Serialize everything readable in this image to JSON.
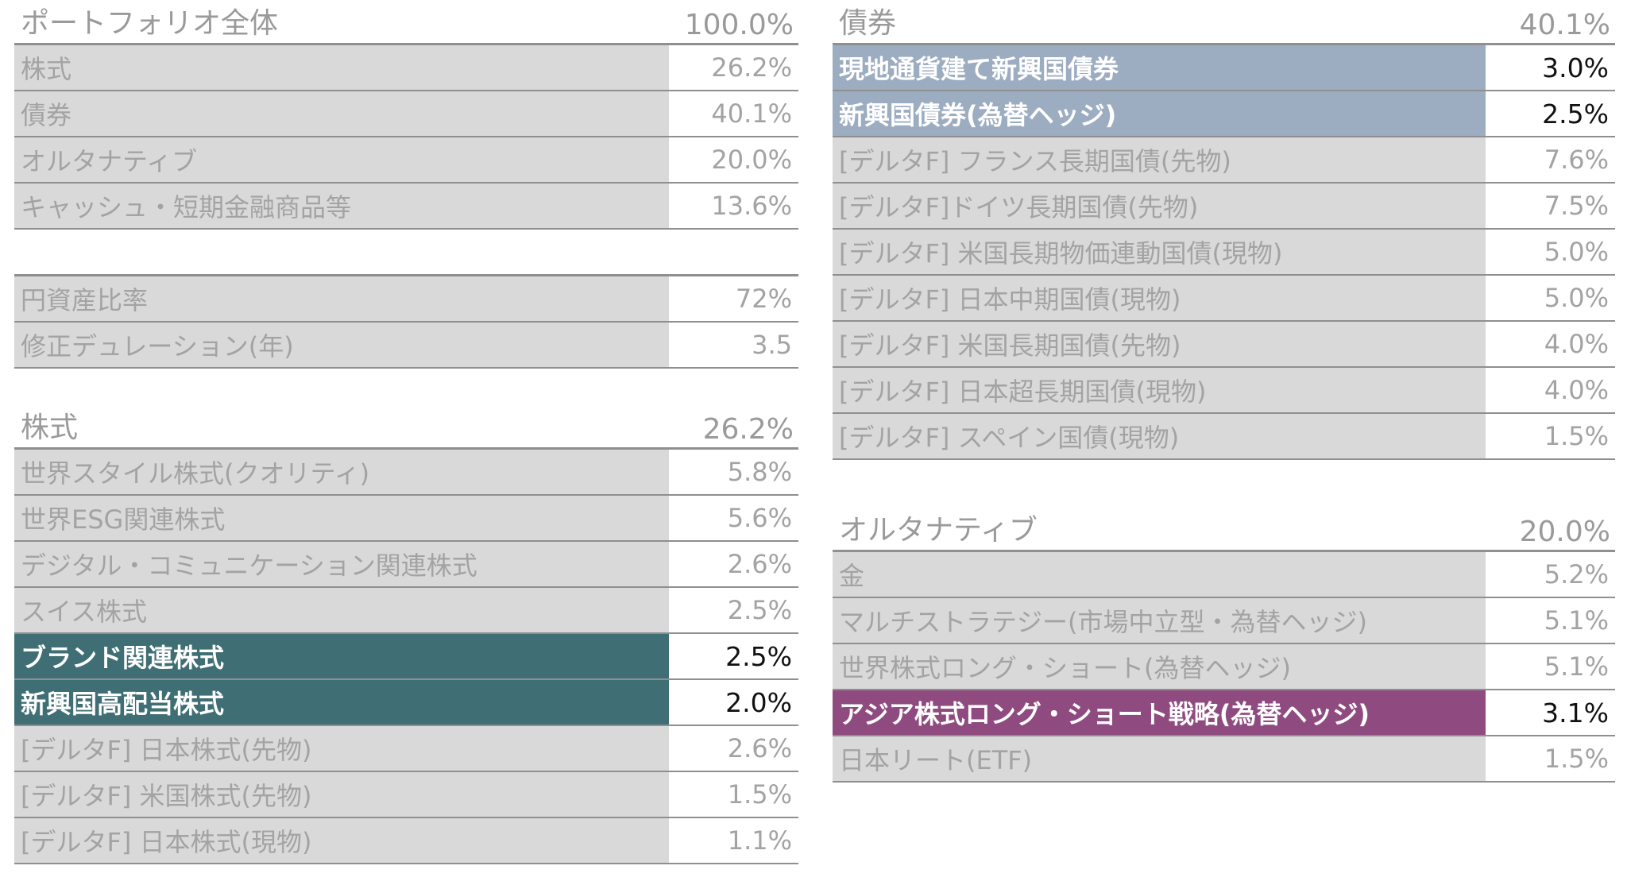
{
  "portfolio": {
    "title": "ポートフォリオ全体",
    "total": "100.0%",
    "rows": [
      {
        "label": "株式",
        "value": "26.2%"
      },
      {
        "label": "債券",
        "value": "40.1%"
      },
      {
        "label": "オルタナティブ",
        "value": "20.0%"
      },
      {
        "label": "キャッシュ・短期金融商品等",
        "value": "13.6%"
      }
    ]
  },
  "metrics": {
    "rows": [
      {
        "label": "円資産比率",
        "value": "72%"
      },
      {
        "label": "修正デュレーション(年)",
        "value": "3.5"
      }
    ]
  },
  "equities": {
    "title": "株式",
    "total": "26.2%",
    "rows": [
      {
        "label": "世界スタイル株式(クオリティ)",
        "value": "5.8%"
      },
      {
        "label": "世界ESG関連株式",
        "value": "5.6%"
      },
      {
        "label": "デジタル・コミュニケーション関連株式",
        "value": "2.6%"
      },
      {
        "label": "スイス株式",
        "value": "2.5%"
      },
      {
        "label": "ブランド関連株式",
        "value": "2.5%"
      },
      {
        "label": "新興国高配当株式",
        "value": "2.0%"
      },
      {
        "label": "[デルタF] 日本株式(先物)",
        "value": "2.6%"
      },
      {
        "label": "[デルタF] 米国株式(先物)",
        "value": "1.5%"
      },
      {
        "label": "[デルタF] 日本株式(現物)",
        "value": "1.1%"
      }
    ]
  },
  "bonds": {
    "title": "債券",
    "total": "40.1%",
    "rows": [
      {
        "label": "現地通貨建て新興国債券",
        "value": "3.0%"
      },
      {
        "label": "新興国債券(為替ヘッジ)",
        "value": "2.5%"
      },
      {
        "label": "[デルタF] フランス長期国債(先物)",
        "value": "7.6%"
      },
      {
        "label": "[デルタF]ドイツ長期国債(先物)",
        "value": "7.5%"
      },
      {
        "label": "[デルタF] 米国長期物価連動国債(現物)",
        "value": "5.0%"
      },
      {
        "label": "[デルタF] 日本中期国債(現物)",
        "value": "5.0%"
      },
      {
        "label": "[デルタF] 米国長期国債(先物)",
        "value": "4.0%"
      },
      {
        "label": "[デルタF] 日本超長期国債(現物)",
        "value": "4.0%"
      },
      {
        "label": "[デルタF] スペイン国債(現物)",
        "value": "1.5%"
      }
    ]
  },
  "alternatives": {
    "title": "オルタナティブ",
    "total": "20.0%",
    "rows": [
      {
        "label": "金",
        "value": "5.2%"
      },
      {
        "label": "マルチストラテジー(市場中立型・為替ヘッジ)",
        "value": "5.1%"
      },
      {
        "label": "世界株式ロング・ショート(為替ヘッジ)",
        "value": "5.1%"
      },
      {
        "label": "アジア株式ロング・ショート戦略(為替ヘッジ)",
        "value": "3.1%"
      },
      {
        "label": "日本リート(ETF)",
        "value": "1.5%"
      }
    ]
  },
  "highlight_colors": {
    "equities": "#3f6e74",
    "bonds": "#9cacc1",
    "alternatives": "#8f4b80"
  }
}
